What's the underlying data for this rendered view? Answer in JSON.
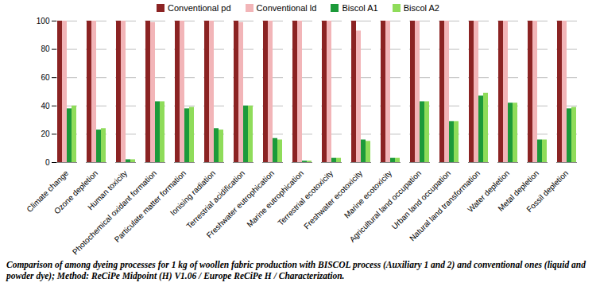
{
  "chart_data": {
    "type": "bar",
    "caption": "Comparison of among dyeing processes for 1 kg of woollen fabric production with BISCOL process (Auxiliary 1 and 2) and conventional ones (liquid and powder dye); Method: ReCiPe Midpoint (H) V1.06 / Europe ReCiPe H / Characterization.",
    "categories": [
      "Climate change",
      "Ozone depletion",
      "Human toxicity",
      "Photochemical oxidant formation",
      "Particulate matter formation",
      "Ionising radiation",
      "Terrestrial acidification",
      "Freshwater eutrophication",
      "Marine eutrophication",
      "Terrestrial ecotoxicity",
      "Freshwater ecotoxicity",
      "Marine ecotoxicity",
      "Agricultural land occupation",
      "Urban land occupation",
      "Natural land transformation",
      "Water depletion",
      "Metal depletion",
      "Fossil depletion"
    ],
    "series": [
      {
        "name": "Conventional pd",
        "color": "#8b2323",
        "values": [
          100,
          100,
          100,
          100,
          100,
          100,
          100,
          100,
          100,
          100,
          100,
          100,
          100,
          100,
          100,
          100,
          100,
          100
        ]
      },
      {
        "name": "Conventional ld",
        "color": "#f2b5b8",
        "values": [
          100,
          100,
          100,
          99,
          100,
          100,
          99,
          100,
          100,
          100,
          93,
          100,
          100,
          100,
          100,
          100,
          100,
          100
        ]
      },
      {
        "name": "Biscol A1",
        "color": "#1c9a3a",
        "values": [
          38,
          23,
          2,
          43,
          38,
          24,
          40,
          17,
          1,
          3,
          16,
          3,
          43,
          29,
          47,
          42,
          16,
          38
        ]
      },
      {
        "name": "Biscol A2",
        "color": "#8fdc5a",
        "values": [
          40,
          24,
          2,
          43,
          39,
          23,
          40,
          16,
          1,
          3,
          15,
          3,
          43,
          29,
          49,
          42,
          16,
          39
        ]
      }
    ],
    "ylim": [
      0,
      100
    ],
    "yticks": [
      0,
      20,
      40,
      60,
      80,
      100
    ],
    "grid": true,
    "legend": "top"
  }
}
